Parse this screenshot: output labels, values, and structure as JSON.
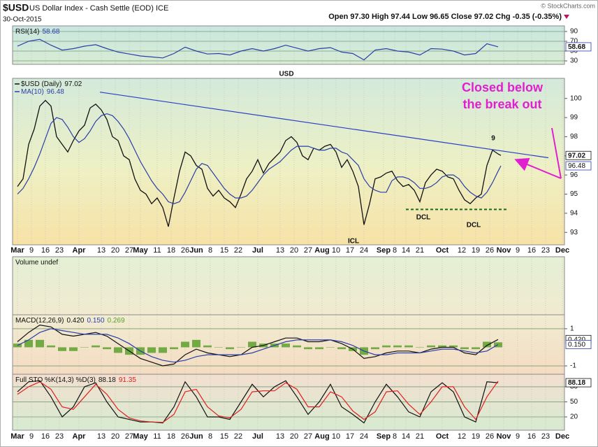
{
  "header": {
    "symbol": "$USD",
    "name": "US Dollar Index - Cash Settle (EOD) ICE",
    "date": "30-Oct-2015",
    "quote": "Open 97.30 High 97.44 Low 96.65 Close 97.02 Chg -0.35 (-0.35%)",
    "credit": "© StockCharts.com"
  },
  "chart_data": [
    {
      "type": "line",
      "title": "RSI(14)",
      "xlim": [
        -1.75,
        195.75
      ],
      "x": [
        0,
        4,
        8,
        12,
        16,
        20,
        24,
        28,
        32,
        36,
        40,
        44,
        48,
        52,
        56,
        60,
        64,
        68,
        72,
        76,
        80,
        84,
        88,
        92,
        96,
        100,
        104,
        108,
        112,
        116,
        120,
        124,
        128,
        132,
        136,
        140,
        144,
        148,
        152,
        156,
        160,
        164,
        168,
        172
      ],
      "series": [
        {
          "color": "#2a3fa8",
          "value_box": true,
          "values": [
            60,
            70,
            74,
            62,
            52,
            55,
            60,
            63,
            55,
            48,
            44,
            40,
            38,
            36,
            45,
            58,
            50,
            44,
            45,
            42,
            50,
            55,
            50,
            55,
            62,
            56,
            50,
            55,
            57,
            48,
            45,
            32,
            52,
            55,
            50,
            48,
            42,
            55,
            54,
            50,
            42,
            45,
            65,
            58.68
          ]
        }
      ],
      "ylim": [
        22.9,
        101.4
      ],
      "yticks": [
        30,
        50,
        70,
        90
      ],
      "grid": true
    },
    {
      "type": "line",
      "xlim": [
        -1.75,
        195.75
      ],
      "x": [
        0,
        2,
        4,
        6,
        8,
        10,
        12,
        14,
        16,
        18,
        20,
        22,
        24,
        26,
        28,
        30,
        32,
        34,
        36,
        38,
        40,
        42,
        44,
        46,
        48,
        50,
        52,
        54,
        56,
        58,
        60,
        62,
        64,
        66,
        68,
        70,
        72,
        74,
        76,
        78,
        80,
        82,
        84,
        86,
        88,
        90,
        92,
        94,
        96,
        98,
        100,
        102,
        104,
        106,
        108,
        110,
        112,
        114,
        116,
        118,
        120,
        122,
        124,
        126,
        128,
        130,
        132,
        134,
        136,
        138,
        140,
        142,
        144,
        146,
        148,
        150,
        152,
        154,
        156,
        158,
        160,
        162,
        164,
        166,
        168,
        170,
        172,
        173
      ],
      "series": [
        {
          "name": "$USD (Daily)",
          "color": "#111111",
          "value_box": true,
          "values": [
            95.4,
            95.8,
            97.6,
            98.4,
            99.6,
            99.9,
            99.6,
            98.0,
            97.6,
            97.2,
            97.8,
            98.3,
            98.6,
            99.5,
            99.7,
            99.4,
            98.9,
            98.0,
            97.8,
            97.0,
            96.8,
            95.8,
            95.2,
            95.0,
            94.5,
            94.8,
            94.3,
            93.3,
            94.8,
            96.2,
            97.2,
            97.0,
            96.5,
            96.3,
            95.3,
            94.9,
            95.2,
            94.8,
            94.6,
            94.3,
            95.0,
            95.8,
            96.2,
            96.8,
            96.1,
            96.6,
            96.9,
            97.2,
            97.8,
            98.0,
            97.7,
            97.0,
            96.8,
            97.4,
            97.3,
            97.5,
            97.6,
            97.2,
            96.4,
            96.8,
            96.2,
            95.4,
            93.4,
            94.5,
            95.8,
            95.9,
            96.1,
            96.2,
            95.7,
            95.4,
            95.5,
            95.2,
            94.6,
            95.6,
            96.0,
            96.3,
            96.2,
            95.9,
            95.8,
            95.2,
            94.7,
            94.5,
            94.8,
            95.0,
            96.5,
            97.3,
            97.1,
            97.02
          ]
        },
        {
          "name": "MA(10)",
          "color": "#2a3fa8",
          "value_box": true,
          "values": [
            95.0,
            95.3,
            95.8,
            96.4,
            97.1,
            97.9,
            98.7,
            99.0,
            98.9,
            98.5,
            98.0,
            97.7,
            97.9,
            98.3,
            98.8,
            99.1,
            99.2,
            99.1,
            98.8,
            98.4,
            97.9,
            97.3,
            96.7,
            96.2,
            95.7,
            95.3,
            95.0,
            94.6,
            94.5,
            94.6,
            95.1,
            95.7,
            96.3,
            96.6,
            96.5,
            96.1,
            95.7,
            95.3,
            95.0,
            94.8,
            94.8,
            94.9,
            95.2,
            95.6,
            96.0,
            96.3,
            96.5,
            96.7,
            97.0,
            97.3,
            97.5,
            97.5,
            97.5,
            97.4,
            97.3,
            97.3,
            97.4,
            97.4,
            97.2,
            97.1,
            96.8,
            96.5,
            95.8,
            95.4,
            95.2,
            95.1,
            95.1,
            95.7,
            95.9,
            95.9,
            95.8,
            95.6,
            95.3,
            95.3,
            95.4,
            95.6,
            95.9,
            96.0,
            96.0,
            95.8,
            95.4,
            95.1,
            94.9,
            94.8,
            95.1,
            95.6,
            96.2,
            96.48
          ]
        }
      ],
      "ylim": [
        92.35,
        101.05
      ],
      "yticks": [
        93,
        94,
        95,
        96,
        97,
        98,
        99,
        100
      ],
      "xticks": [
        {
          "value": 0,
          "label": "Mar"
        },
        {
          "value": 5,
          "label": "9"
        },
        {
          "value": 10,
          "label": "16"
        },
        {
          "value": 15,
          "label": "23"
        },
        {
          "value": 22,
          "label": "Apr"
        },
        {
          "value": 30,
          "label": "13"
        },
        {
          "value": 35,
          "label": "20"
        },
        {
          "value": 40,
          "label": "27"
        },
        {
          "value": 44,
          "label": "May"
        },
        {
          "value": 50,
          "label": "11"
        },
        {
          "value": 55,
          "label": "18"
        },
        {
          "value": 60,
          "label": "26"
        },
        {
          "value": 64,
          "label": "Jun"
        },
        {
          "value": 69,
          "label": "8"
        },
        {
          "value": 74,
          "label": "15"
        },
        {
          "value": 79,
          "label": "22"
        },
        {
          "value": 86,
          "label": "Jul"
        },
        {
          "value": 94,
          "label": "13"
        },
        {
          "value": 99,
          "label": "20"
        },
        {
          "value": 104,
          "label": "27"
        },
        {
          "value": 109,
          "label": "Aug"
        },
        {
          "value": 114,
          "label": "10"
        },
        {
          "value": 119,
          "label": "17"
        },
        {
          "value": 124,
          "label": "24"
        },
        {
          "value": 131,
          "label": "Sep"
        },
        {
          "value": 135,
          "label": "8"
        },
        {
          "value": 139,
          "label": "14"
        },
        {
          "value": 144,
          "label": "21"
        },
        {
          "value": 152,
          "label": "Oct"
        },
        {
          "value": 159,
          "label": "12"
        },
        {
          "value": 164,
          "label": "19"
        },
        {
          "value": 169,
          "label": "26"
        },
        {
          "value": 174,
          "label": "Nov"
        },
        {
          "value": 179,
          "label": "9"
        },
        {
          "value": 184,
          "label": "16"
        },
        {
          "value": 189,
          "label": "23"
        },
        {
          "value": 195,
          "label": "Dec"
        }
      ],
      "trendlines": [
        {
          "x": [
            29.5,
            190
          ],
          "values": [
            100.33,
            96.9
          ],
          "color": "#2a3fc8"
        },
        {
          "x": [
            139,
            175
          ],
          "values": [
            94.2,
            94.2
          ],
          "color": "#1a6b1a",
          "style": "dashed"
        }
      ],
      "annotations": [
        {
          "text": "USD",
          "color": "#1a1acc"
        },
        {
          "text": "Closed below the break out",
          "color": "#e020d0"
        },
        {
          "text": "9",
          "color": "#1a1acc"
        },
        {
          "text": "ICL",
          "color": "#1a6b1a"
        },
        {
          "text": "DCL",
          "color": "#1a6b1a"
        },
        {
          "text": "DCL",
          "color": "#1a6b1a"
        }
      ]
    },
    {
      "type": "bar",
      "title": "Volume undef"
    },
    {
      "type": "line",
      "title": "MACD(12,26,9)",
      "xlim": [
        -1.75,
        195.75
      ],
      "x": [
        0,
        4,
        8,
        12,
        16,
        20,
        24,
        28,
        32,
        36,
        40,
        44,
        48,
        52,
        56,
        60,
        64,
        68,
        72,
        76,
        80,
        84,
        88,
        92,
        96,
        100,
        104,
        108,
        112,
        116,
        120,
        124,
        128,
        132,
        136,
        140,
        144,
        148,
        152,
        156,
        160,
        164,
        168,
        172
      ],
      "series": [
        {
          "type": "bar",
          "color": "#5aa02c",
          "values": [
            0.2,
            0.4,
            0.4,
            0.1,
            -0.2,
            -0.2,
            0,
            0.1,
            -0.1,
            -0.3,
            -0.4,
            -0.4,
            -0.3,
            -0.3,
            -0.1,
            0.3,
            0.4,
            0.1,
            0,
            -0.1,
            0,
            0.3,
            0.2,
            0.2,
            0.2,
            0.1,
            -0.1,
            -0.1,
            0,
            -0.1,
            -0.2,
            -0.4,
            -0.1,
            0.1,
            0.1,
            0.1,
            0,
            0.1,
            0.1,
            0.1,
            -0.1,
            -0.1,
            0.3,
            0.269
          ]
        },
        {
          "color": "#111111",
          "value_box": true,
          "values": [
            0.3,
            0.8,
            1.2,
            1.1,
            0.7,
            0.6,
            0.7,
            0.8,
            0.6,
            0.2,
            -0.2,
            -0.6,
            -0.8,
            -1.0,
            -0.9,
            -0.4,
            -0.1,
            -0.3,
            -0.4,
            -0.5,
            -0.4,
            0.0,
            0.1,
            0.3,
            0.5,
            0.5,
            0.3,
            0.3,
            0.4,
            0.2,
            -0.1,
            -0.6,
            -0.5,
            -0.3,
            -0.2,
            -0.2,
            -0.3,
            -0.1,
            0.0,
            0.0,
            -0.3,
            -0.4,
            0.1,
            0.42
          ],
          "value_labels": [
            null,
            null,
            null,
            null,
            null,
            null,
            null,
            null,
            null,
            null,
            null,
            null,
            null,
            null,
            null,
            null,
            null,
            null,
            null,
            null,
            null,
            null,
            null,
            null,
            null,
            null,
            null,
            null,
            null,
            null,
            null,
            null,
            null,
            null,
            null,
            null,
            null,
            null,
            null,
            null,
            null,
            null,
            null,
            "0.420"
          ]
        },
        {
          "color": "#2a3fa8",
          "value_box": true,
          "values": [
            0.1,
            0.4,
            0.8,
            1.0,
            0.9,
            0.8,
            0.7,
            0.7,
            0.7,
            0.5,
            0.2,
            -0.2,
            -0.5,
            -0.7,
            -0.8,
            -0.7,
            -0.5,
            -0.4,
            -0.4,
            -0.4,
            -0.4,
            -0.3,
            -0.1,
            0.1,
            0.3,
            0.4,
            0.4,
            0.4,
            0.4,
            0.3,
            0.1,
            -0.2,
            -0.4,
            -0.4,
            -0.3,
            -0.3,
            -0.3,
            -0.2,
            -0.1,
            -0.1,
            -0.2,
            -0.3,
            -0.2,
            0.15
          ],
          "value_labels": [
            null,
            null,
            null,
            null,
            null,
            null,
            null,
            null,
            null,
            null,
            null,
            null,
            null,
            null,
            null,
            null,
            null,
            null,
            null,
            null,
            null,
            null,
            null,
            null,
            null,
            null,
            null,
            null,
            null,
            null,
            null,
            null,
            null,
            null,
            null,
            null,
            null,
            null,
            null,
            null,
            null,
            null,
            null,
            "0.150"
          ]
        }
      ],
      "ylim": [
        -1.45,
        1.75
      ],
      "yticks": [
        1,
        -1
      ],
      "grid": true
    },
    {
      "type": "line",
      "title": "Full STO %K(14,3) %D(3)",
      "xlim": [
        -1.75,
        195.75
      ],
      "x": [
        0,
        4,
        8,
        12,
        16,
        20,
        24,
        28,
        32,
        36,
        40,
        44,
        48,
        52,
        56,
        60,
        64,
        68,
        72,
        76,
        80,
        84,
        88,
        92,
        96,
        100,
        104,
        108,
        112,
        116,
        120,
        124,
        128,
        132,
        136,
        140,
        144,
        148,
        152,
        156,
        160,
        164,
        168,
        172
      ],
      "series": [
        {
          "color": "#111111",
          "value_box": true,
          "values": [
            70,
            90,
            92,
            60,
            20,
            40,
            80,
            88,
            50,
            20,
            15,
            10,
            10,
            8,
            40,
            90,
            60,
            20,
            20,
            15,
            50,
            85,
            60,
            80,
            92,
            60,
            25,
            50,
            85,
            40,
            25,
            8,
            50,
            85,
            60,
            30,
            20,
            70,
            88,
            70,
            20,
            10,
            90,
            88.18
          ]
        },
        {
          "color": "#e02020",
          "values": [
            65,
            80,
            90,
            75,
            40,
            35,
            60,
            85,
            65,
            35,
            18,
            12,
            10,
            9,
            25,
            70,
            75,
            40,
            22,
            18,
            35,
            70,
            72,
            72,
            88,
            75,
            40,
            40,
            70,
            60,
            32,
            15,
            30,
            70,
            72,
            45,
            25,
            50,
            80,
            80,
            40,
            15,
            60,
            91.35
          ]
        }
      ],
      "ylim": [
        -6.5,
        105
      ],
      "yticks": [
        20,
        50,
        80
      ],
      "grid": true
    }
  ]
}
